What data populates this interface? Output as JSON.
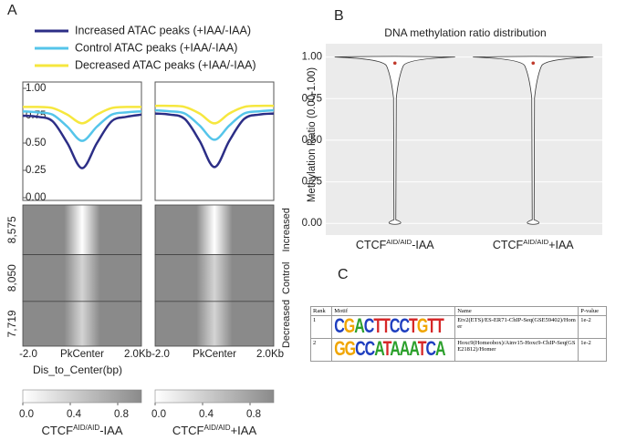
{
  "panel_labels": [
    "A",
    "B",
    "C"
  ],
  "chart_data": [
    {
      "type": "line",
      "x": [
        -2,
        -1.5,
        -1,
        -0.5,
        0,
        0.5,
        1,
        1.5,
        2
      ],
      "xlim": [
        -2,
        2
      ],
      "ylim": [
        0,
        1
      ],
      "xticks": [
        {
          "value": -2,
          "label": "-2.0"
        },
        {
          "value": 0,
          "label": "PkCenter"
        },
        {
          "value": 2,
          "label": "2.0Kb"
        }
      ],
      "yticks": [
        {
          "value": 0,
          "label": "0.00"
        },
        {
          "value": 0.25,
          "label": "0.25"
        },
        {
          "value": 0.5,
          "label": "0.50"
        },
        {
          "value": 0.75,
          "label": "0.75"
        },
        {
          "value": 1,
          "label": "1.00"
        }
      ],
      "xlabel": "Dis_to_Center(bp)",
      "series": [
        {
          "name": "Increased ATAC peaks (+IAA/-IAA)",
          "color": "#2c2e86",
          "values": [
            0.75,
            0.74,
            0.7,
            0.5,
            0.27,
            0.5,
            0.7,
            0.74,
            0.76
          ]
        },
        {
          "name": "Control ATAC peaks (+IAA/-IAA)",
          "color": "#55c5ea",
          "values": [
            0.79,
            0.78,
            0.76,
            0.65,
            0.52,
            0.65,
            0.76,
            0.78,
            0.79
          ]
        },
        {
          "name": "Decreased ATAC peaks (+IAA/-IAA)",
          "color": "#f6e73e",
          "values": [
            0.83,
            0.83,
            0.82,
            0.76,
            0.68,
            0.76,
            0.82,
            0.83,
            0.83
          ]
        }
      ]
    },
    {
      "type": "line",
      "x": [
        -2,
        -1.5,
        -1,
        -0.5,
        0,
        0.5,
        1,
        1.5,
        2
      ],
      "xlim": [
        -2,
        2
      ],
      "ylim": [
        0,
        1
      ],
      "xticks": [
        {
          "value": -2,
          "label": "-2.0"
        },
        {
          "value": 0,
          "label": "PkCenter"
        },
        {
          "value": 2,
          "label": "2.0Kb"
        }
      ],
      "series": [
        {
          "color": "#2c2e86",
          "values": [
            0.77,
            0.76,
            0.72,
            0.52,
            0.28,
            0.52,
            0.72,
            0.76,
            0.77
          ]
        },
        {
          "color": "#55c5ea",
          "values": [
            0.8,
            0.79,
            0.77,
            0.66,
            0.53,
            0.66,
            0.77,
            0.79,
            0.8
          ]
        },
        {
          "color": "#f6e73e",
          "values": [
            0.84,
            0.84,
            0.83,
            0.77,
            0.68,
            0.77,
            0.83,
            0.84,
            0.84
          ]
        }
      ]
    },
    {
      "type": "heatmap",
      "row_groups": [
        "Increased",
        "Control",
        "Decreased"
      ],
      "row_counts": [
        {
          "value": 8575,
          "label": "8,575"
        },
        {
          "value": 8050,
          "label": "8,050"
        },
        {
          "value": 7719,
          "label": "7,719"
        }
      ],
      "clim": [
        0,
        1
      ],
      "cticks": [
        {
          "value": 0,
          "label": "0.0"
        },
        {
          "value": 0.4,
          "label": "0.4"
        },
        {
          "value": 0.8,
          "label": "0.8"
        }
      ],
      "colormap": [
        "#ffffff",
        "#8a8a8a"
      ],
      "conditions": [
        {
          "name": "CTCF",
          "sup": "AID/AID",
          "suffix": "-IAA"
        },
        {
          "name": "CTCF",
          "sup": "AID/AID",
          "suffix": "+IAA"
        }
      ]
    },
    {
      "type": "violin",
      "title": "DNA methylation ratio distribution",
      "ylabel": "Methylation Ratio (0.00-1.00)",
      "categories": [
        {
          "name": "CTCF",
          "sup": "AID/AID",
          "suffix": "-IAA"
        },
        {
          "name": "CTCF",
          "sup": "AID/AID",
          "suffix": "+IAA"
        }
      ],
      "values": [
        0.98,
        0.98
      ],
      "ylim": [
        -0.07,
        1.08
      ],
      "yticks": [
        {
          "value": 0,
          "label": "0.00"
        },
        {
          "value": 0.25,
          "label": "0.25"
        },
        {
          "value": 0.5,
          "label": "0.50"
        },
        {
          "value": 0.75,
          "label": "0.75"
        },
        {
          "value": 1,
          "label": "1.00"
        }
      ],
      "color": "#ffffff",
      "median_color": "#c0392b",
      "grid": true
    }
  ],
  "table": {
    "headers": [
      "Rank",
      "Motif",
      "Name",
      "P-value"
    ],
    "rows": [
      [
        "1",
        "CGACTTCCTGTT",
        "Etv2(ETS)/ES-ER71-ChIP-Seq(GSE59402)/Homer",
        "1e-2"
      ],
      [
        "2",
        "GGCCATAAATCA",
        "Hoxc9(Homeobox)/Ainv15-Hoxc9-ChIP-Seq(GSE21812)/Homer",
        "1e-2"
      ]
    ]
  }
}
